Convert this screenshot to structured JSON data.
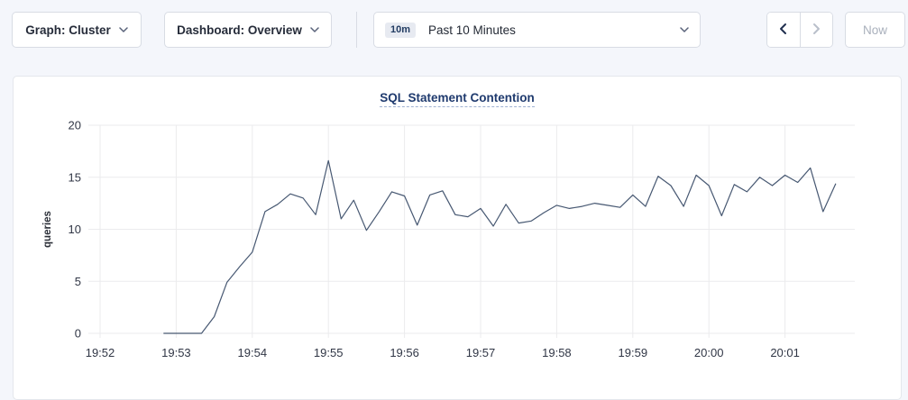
{
  "toolbar": {
    "graph_dropdown": {
      "label": "Graph: Cluster"
    },
    "dashboard_dropdown": {
      "label": "Dashboard: Overview"
    },
    "time_range": {
      "badge": "10m",
      "label": "Past 10 Minutes"
    },
    "now_label": "Now",
    "icons": {
      "dropdowns": "chevron-down",
      "time_back": "chevron-left",
      "time_forward": "chevron-right"
    }
  },
  "chart_data": {
    "type": "line",
    "title": "SQL Statement Contention",
    "xlabel": "",
    "ylabel": "queries",
    "ylim": [
      0,
      20
    ],
    "y_ticks": [
      0,
      5,
      10,
      15,
      20
    ],
    "x_ticks": [
      "19:52",
      "19:53",
      "19:54",
      "19:55",
      "19:56",
      "19:57",
      "19:58",
      "19:59",
      "20:00",
      "20:01"
    ],
    "grid": true,
    "legend": "none",
    "colors": {
      "line": "#475872",
      "grid": "#ebebed",
      "axis_text": "#303645",
      "title": "#1f3a6e"
    },
    "series": [
      {
        "name": "queries",
        "x": [
          "19:52:50",
          "19:53:00",
          "19:53:10",
          "19:53:20",
          "19:53:30",
          "19:53:40",
          "19:53:50",
          "19:54:00",
          "19:54:10",
          "19:54:20",
          "19:54:30",
          "19:54:40",
          "19:54:50",
          "19:55:00",
          "19:55:10",
          "19:55:20",
          "19:55:30",
          "19:55:40",
          "19:55:50",
          "19:56:00",
          "19:56:10",
          "19:56:20",
          "19:56:30",
          "19:56:40",
          "19:56:50",
          "19:57:00",
          "19:57:10",
          "19:57:20",
          "19:57:30",
          "19:57:40",
          "19:57:50",
          "19:58:00",
          "19:58:10",
          "19:58:20",
          "19:58:30",
          "19:58:40",
          "19:58:50",
          "19:59:00",
          "19:59:10",
          "19:59:20",
          "19:59:30",
          "19:59:40",
          "19:59:50",
          "20:00:00",
          "20:00:10",
          "20:00:20",
          "20:00:30",
          "20:00:40",
          "20:00:50",
          "20:01:00",
          "20:01:10",
          "20:01:20",
          "20:01:30",
          "20:01:40"
        ],
        "y": [
          0,
          0,
          0,
          0,
          1.6,
          4.9,
          6.4,
          7.8,
          11.7,
          12.4,
          13.4,
          13.0,
          11.4,
          16.6,
          11.0,
          12.8,
          9.9,
          11.7,
          13.6,
          13.2,
          10.4,
          13.3,
          13.7,
          11.4,
          11.2,
          12.0,
          10.3,
          12.4,
          10.6,
          10.8,
          11.6,
          12.3,
          12.0,
          12.2,
          12.5,
          12.3,
          12.1,
          13.3,
          12.2,
          15.1,
          14.2,
          12.2,
          15.2,
          14.2,
          11.3,
          14.3,
          13.6,
          15.0,
          14.2,
          15.2,
          14.5,
          15.9,
          11.7,
          14.4
        ]
      }
    ]
  }
}
